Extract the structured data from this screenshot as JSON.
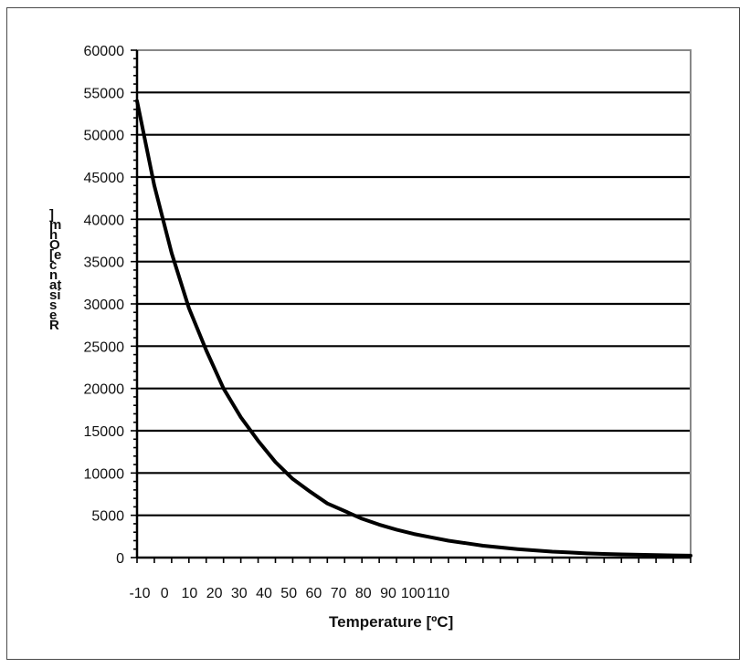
{
  "chart_data": {
    "type": "line",
    "title": "",
    "xlabel": "Temperature [ºC]",
    "ylabel_vertical": "]mhO[ecnatsiseR",
    "x_tick_labels": [
      "-10",
      "0",
      "10",
      "20",
      "30",
      "40",
      "50",
      "60",
      "70",
      "80",
      "90",
      "100",
      "110"
    ],
    "y_tick_labels": [
      "0",
      "5000",
      "10000",
      "15000",
      "20000",
      "25000",
      "30000",
      "35000",
      "40000",
      "45000",
      "50000",
      "55000",
      "60000"
    ],
    "ylim": [
      0,
      60000
    ],
    "xlim": [
      -10,
      150
    ],
    "grid": "horizontal",
    "line_color": "#000000",
    "series": [
      {
        "x": [
          -10,
          -5,
          0,
          5,
          10,
          15,
          20,
          25,
          30,
          35,
          40,
          45,
          50,
          55,
          60,
          65,
          70,
          75,
          80,
          85,
          90,
          95,
          100,
          105,
          110,
          115,
          120,
          125,
          130,
          135,
          140,
          145,
          150
        ],
        "y": [
          54000,
          44000,
          36000,
          29500,
          24500,
          20000,
          16600,
          13800,
          11300,
          9300,
          7800,
          6400,
          5500,
          4600,
          3900,
          3300,
          2800,
          2400,
          2000,
          1700,
          1400,
          1200,
          1000,
          850,
          700,
          600,
          500,
          430,
          380,
          330,
          290,
          260,
          230
        ]
      }
    ]
  }
}
